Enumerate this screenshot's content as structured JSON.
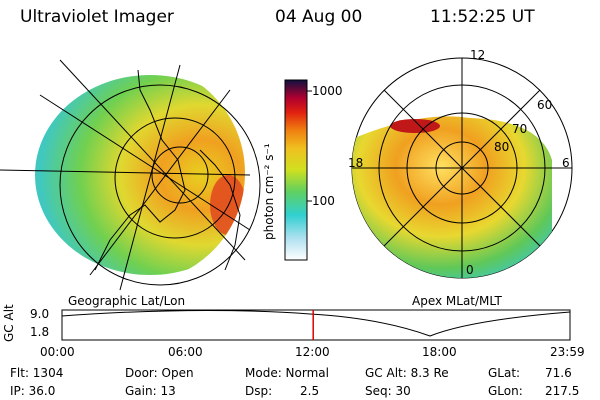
{
  "header": {
    "instrument": "Ultraviolet Imager",
    "date": "04 Aug 00",
    "time": "11:52:25 UT"
  },
  "colorbar": {
    "unit_label": "photon cm⁻² s⁻¹",
    "ticks": [
      "1000",
      "100"
    ]
  },
  "panels": {
    "left_title": "Geographic Lat/Lon",
    "right_title": "Apex MLat/MLT",
    "polar_labels": {
      "top": "12",
      "left": "18",
      "right": "6",
      "bottom": "0"
    },
    "lat_labels": [
      "60",
      "70",
      "80"
    ]
  },
  "altitude_plot": {
    "ylabel": "GC Alt",
    "yticks": [
      "9.0",
      "1.8"
    ],
    "xticks": [
      "00:00",
      "06:00",
      "12:00",
      "18:00",
      "23:59"
    ],
    "current_time_fraction": 0.4945
  },
  "info": {
    "flt": "Flt: 1304",
    "ip": "IP: 36.0",
    "door": "Door: Open",
    "gain": "Gain: 13",
    "mode": "Mode: Normal",
    "dsp_label": "Dsp:",
    "dsp_value": "2.5",
    "gcalt": "GC Alt: 8.3 Re",
    "seq": "Seq: 30",
    "glat_label": "GLat:",
    "glat_value": "71.6",
    "glon_label": "GLon:",
    "glon_value": "217.5"
  },
  "colors": {
    "marker": "#e00000"
  }
}
